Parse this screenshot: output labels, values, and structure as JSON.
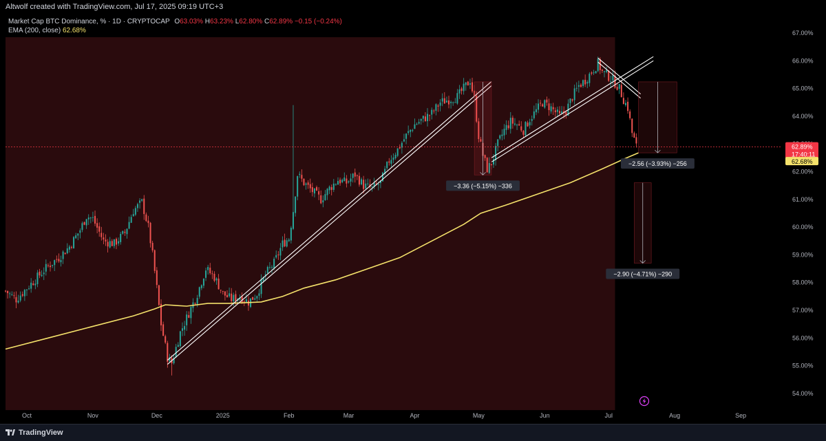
{
  "header": {
    "credit": "Altwolf created with TradingView.com, Jul 17, 2025 09:19 UTC+3"
  },
  "legend": {
    "symbol": "Market Cap BTC Dominance, % · 1D · CRYPTOCAP",
    "o_label": "O",
    "o_value": "63.03%",
    "h_label": "H",
    "h_value": "63.23%",
    "l_label": "L",
    "l_value": "62.80%",
    "c_label": "C",
    "c_value": "62.89%",
    "change": "−0.15 (−0.24%)",
    "ema_label": "EMA (200, close)",
    "ema_value": "62.68%"
  },
  "price_tags": {
    "last_price": "62.89%",
    "countdown": "17:40:11",
    "ema": "62.68%"
  },
  "measures": [
    {
      "text": "−3.36 (−5.15%) −336"
    },
    {
      "text": "−2.56 (−3.93%) −256"
    },
    {
      "text": "−2.90 (−4.71%) −290"
    }
  ],
  "footer": {
    "brand": "TradingView"
  },
  "colors": {
    "up": "#26a69a",
    "down": "#ef5350",
    "ema": "#f5e26b",
    "background": "#000000",
    "highlight": "#2a0b0d",
    "last_price_tag": "#f23645"
  },
  "icons": {
    "flash": "lightning-icon",
    "brand": "tradingview-logo-icon"
  },
  "chart_data": {
    "type": "candlestick",
    "title": "Market Cap BTC Dominance, % · 1D · CRYPTOCAP",
    "ylim": [
      53.7,
      67.1
    ],
    "y_ticks": [
      "54.00%",
      "55.00%",
      "56.00%",
      "57.00%",
      "58.00%",
      "59.00%",
      "60.00%",
      "61.00%",
      "62.00%",
      "63.00%",
      "64.00%",
      "65.00%",
      "66.00%",
      "67.00%"
    ],
    "y_tick_values": [
      54,
      55,
      56,
      57,
      58,
      59,
      60,
      61,
      62,
      63,
      64,
      65,
      66,
      67
    ],
    "x_ticks": [
      "Oct",
      "Nov",
      "Dec",
      "2025",
      "Feb",
      "Mar",
      "Apr",
      "May",
      "Jun",
      "Jul",
      "Aug",
      "Sep"
    ],
    "x_tick_days": [
      0,
      31,
      61,
      92,
      123,
      151,
      182,
      212,
      243,
      273,
      304,
      335
    ],
    "x_range_days": [
      -10,
      354
    ],
    "series": [
      {
        "name": "Market Cap BTC Dominance",
        "kind": "close_path",
        "points": [
          [
            -10,
            57.7
          ],
          [
            -5,
            57.4
          ],
          [
            0,
            57.8
          ],
          [
            5,
            58.2
          ],
          [
            10,
            58.6
          ],
          [
            15,
            58.9
          ],
          [
            20,
            59.3
          ],
          [
            25,
            59.9
          ],
          [
            28,
            60.4
          ],
          [
            31,
            60.3
          ],
          [
            36,
            59.5
          ],
          [
            41,
            59.4
          ],
          [
            46,
            59.8
          ],
          [
            50,
            60.6
          ],
          [
            54,
            60.9
          ],
          [
            57,
            60.0
          ],
          [
            59,
            59.0
          ],
          [
            61,
            57.8
          ],
          [
            63,
            56.5
          ],
          [
            66,
            55.3
          ],
          [
            68,
            55.1
          ],
          [
            72,
            56.2
          ],
          [
            76,
            56.9
          ],
          [
            80,
            57.6
          ],
          [
            84,
            58.5
          ],
          [
            88,
            58.2
          ],
          [
            92,
            57.6
          ],
          [
            96,
            57.4
          ],
          [
            100,
            57.5
          ],
          [
            104,
            57.3
          ],
          [
            108,
            57.6
          ],
          [
            112,
            58.3
          ],
          [
            116,
            58.7
          ],
          [
            120,
            59.4
          ],
          [
            123,
            59.6
          ],
          [
            125,
            60.6
          ],
          [
            127,
            61.9
          ],
          [
            130,
            61.6
          ],
          [
            134,
            61.3
          ],
          [
            138,
            61.0
          ],
          [
            142,
            61.4
          ],
          [
            146,
            61.7
          ],
          [
            150,
            61.6
          ],
          [
            154,
            61.9
          ],
          [
            158,
            61.5
          ],
          [
            162,
            61.4
          ],
          [
            166,
            61.6
          ],
          [
            170,
            62.4
          ],
          [
            174,
            62.8
          ],
          [
            178,
            63.3
          ],
          [
            182,
            63.7
          ],
          [
            186,
            63.9
          ],
          [
            190,
            64.1
          ],
          [
            194,
            64.5
          ],
          [
            198,
            64.6
          ],
          [
            202,
            64.7
          ],
          [
            205,
            65.0
          ],
          [
            208,
            65.3
          ],
          [
            210,
            64.6
          ],
          [
            212,
            63.3
          ],
          [
            214,
            62.6
          ],
          [
            216,
            62.1
          ],
          [
            218,
            62.3
          ],
          [
            221,
            63.0
          ],
          [
            224,
            63.5
          ],
          [
            227,
            63.8
          ],
          [
            230,
            63.7
          ],
          [
            233,
            63.5
          ],
          [
            236,
            63.9
          ],
          [
            239,
            64.2
          ],
          [
            242,
            64.5
          ],
          [
            246,
            64.3
          ],
          [
            250,
            64.0
          ],
          [
            253,
            64.2
          ],
          [
            256,
            64.7
          ],
          [
            259,
            65.1
          ],
          [
            262,
            65.3
          ],
          [
            265,
            65.6
          ],
          [
            268,
            65.9
          ],
          [
            270,
            65.6
          ],
          [
            272,
            65.5
          ],
          [
            275,
            65.3
          ],
          [
            278,
            65.0
          ],
          [
            280,
            64.6
          ],
          [
            282,
            64.3
          ],
          [
            284,
            63.4
          ],
          [
            286,
            62.9
          ]
        ]
      },
      {
        "name": "EMA (200, close)",
        "kind": "line",
        "points": [
          [
            -10,
            55.6
          ],
          [
            10,
            56.0
          ],
          [
            30,
            56.4
          ],
          [
            50,
            56.8
          ],
          [
            60,
            57.05
          ],
          [
            65,
            57.2
          ],
          [
            75,
            57.15
          ],
          [
            85,
            57.25
          ],
          [
            95,
            57.25
          ],
          [
            110,
            57.3
          ],
          [
            120,
            57.5
          ],
          [
            130,
            57.8
          ],
          [
            145,
            58.1
          ],
          [
            160,
            58.5
          ],
          [
            175,
            58.9
          ],
          [
            190,
            59.5
          ],
          [
            205,
            60.1
          ],
          [
            213,
            60.5
          ],
          [
            225,
            60.8
          ],
          [
            240,
            61.2
          ],
          [
            255,
            61.6
          ],
          [
            270,
            62.1
          ],
          [
            280,
            62.45
          ],
          [
            287,
            62.68
          ]
        ]
      }
    ],
    "last_price": 62.89,
    "ema_last": 62.68,
    "measurements": [
      {
        "from_day": 210,
        "to_day": 218,
        "high": 65.24,
        "low": 61.88,
        "change": -3.36,
        "change_pct": -5.15,
        "ticks": -336
      },
      {
        "from_day": 287,
        "to_day": 305,
        "high": 65.24,
        "low": 62.68,
        "change": -2.56,
        "change_pct": -3.93,
        "ticks": -256
      },
      {
        "from_day": 285,
        "to_day": 293,
        "high": 61.6,
        "low": 58.7,
        "change": -2.9,
        "change_pct": -4.71,
        "ticks": -290
      }
    ],
    "trendlines": [
      {
        "from": [
          66,
          55.05
        ],
        "to": [
          218,
          65.1
        ]
      },
      {
        "from": [
          66,
          55.2
        ],
        "to": [
          218,
          65.25
        ]
      },
      {
        "from": [
          218,
          62.35
        ],
        "to": [
          294,
          66.0
        ]
      },
      {
        "from": [
          218,
          62.5
        ],
        "to": [
          294,
          66.15
        ]
      },
      {
        "from": [
          268,
          66.1
        ],
        "to": [
          288,
          64.8
        ]
      },
      {
        "from": [
          268,
          65.95
        ],
        "to": [
          288,
          64.65
        ]
      }
    ],
    "grid": false,
    "legend_position": "top-left"
  }
}
